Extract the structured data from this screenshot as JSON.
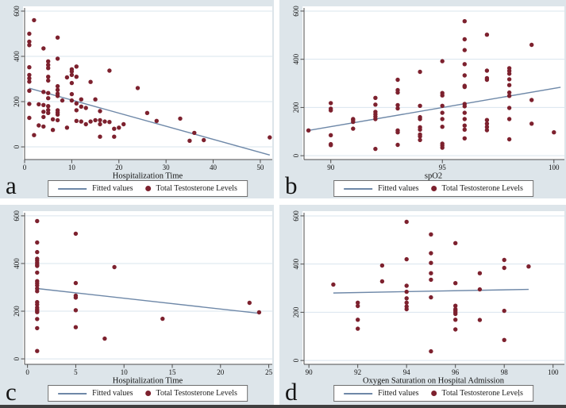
{
  "figure": {
    "colors": {
      "panel_background": "#dde5ea",
      "plot_background": "#ffffff",
      "gridline": "#d9e4ee",
      "axis": "#4d4d4d",
      "text": "#111111",
      "fit_line": "#6e88a8",
      "dot": "#7d212e",
      "legend_border": "#6e6e6e",
      "bottom_bar": "#3f3f3f"
    },
    "legend": {
      "fitted": "Fitted values",
      "scatter": "Total Testosterone Levels"
    },
    "stray_mark": "’"
  },
  "chart_data": [
    {
      "panel_letter": "a",
      "type": "scatter",
      "title": "",
      "xlabel": "Hospitalization Time",
      "ylabel": "",
      "xticks": [
        0,
        10,
        20,
        30,
        40,
        50
      ],
      "yticks": [
        0,
        200,
        400,
        600
      ],
      "xlim": [
        0,
        52.2
      ],
      "ylim": [
        -56,
        614
      ],
      "grid": "horizontal",
      "legend_position": "bottom",
      "fit_line": {
        "x": [
          1,
          52
        ],
        "y": [
          259,
          -36
        ]
      },
      "series": [
        {
          "name": "Total Testosterone Levels",
          "points": [
            [
              1,
              500
            ],
            [
              1,
              465
            ],
            [
              1,
              450
            ],
            [
              1,
              352
            ],
            [
              1,
              318
            ],
            [
              1,
              303
            ],
            [
              1,
              288
            ],
            [
              1,
              248
            ],
            [
              1,
              190
            ],
            [
              1,
              128
            ],
            [
              2,
              560
            ],
            [
              2,
              52
            ],
            [
              3,
              188
            ],
            [
              3,
              95
            ],
            [
              4,
              435
            ],
            [
              4,
              243
            ],
            [
              4,
              185
            ],
            [
              4,
              155
            ],
            [
              4,
              132
            ],
            [
              4,
              90
            ],
            [
              5,
              378
            ],
            [
              5,
              362
            ],
            [
              5,
              348
            ],
            [
              5,
              310
            ],
            [
              5,
              293
            ],
            [
              5,
              238
            ],
            [
              5,
              215
            ],
            [
              5,
              180
            ],
            [
              5,
              163
            ],
            [
              5,
              150
            ],
            [
              6,
              122
            ],
            [
              6,
              75
            ],
            [
              7,
              483
            ],
            [
              7,
              390
            ],
            [
              7,
              268
            ],
            [
              7,
              252
            ],
            [
              7,
              235
            ],
            [
              7,
              225
            ],
            [
              7,
              162
            ],
            [
              7,
              152
            ],
            [
              7,
              143
            ],
            [
              7,
              118
            ],
            [
              8,
              205
            ],
            [
              9,
              307
            ],
            [
              9,
              85
            ],
            [
              10,
              343
            ],
            [
              10,
              333
            ],
            [
              10,
              318
            ],
            [
              10,
              282
            ],
            [
              10,
              233
            ],
            [
              10,
              205
            ],
            [
              11,
              355
            ],
            [
              11,
              310
            ],
            [
              11,
              192
            ],
            [
              11,
              162
            ],
            [
              11,
              115
            ],
            [
              12,
              210
            ],
            [
              12,
              178
            ],
            [
              12,
              112
            ],
            [
              13,
              172
            ],
            [
              13,
              100
            ],
            [
              14,
              287
            ],
            [
              14,
              112
            ],
            [
              15,
              210
            ],
            [
              15,
              118
            ],
            [
              16,
              158
            ],
            [
              16,
              118
            ],
            [
              16,
              100
            ],
            [
              16,
              45
            ],
            [
              17,
              112
            ],
            [
              18,
              337
            ],
            [
              18,
              110
            ],
            [
              19,
              80
            ],
            [
              19,
              45
            ],
            [
              20,
              85
            ],
            [
              21,
              100
            ],
            [
              24,
              260
            ],
            [
              26,
              150
            ],
            [
              28,
              115
            ],
            [
              33,
              125
            ],
            [
              35,
              27
            ],
            [
              36,
              62
            ],
            [
              38,
              30
            ],
            [
              52,
              42
            ]
          ]
        }
      ]
    },
    {
      "panel_letter": "b",
      "type": "scatter",
      "title": "",
      "xlabel": "spO2",
      "ylabel": "",
      "xticks": [
        90,
        95,
        100
      ],
      "yticks": [
        0,
        200,
        400,
        600
      ],
      "xlim": [
        88.8,
        100.4
      ],
      "ylim": [
        -16,
        613
      ],
      "grid": "horizontal",
      "legend_position": "bottom",
      "fit_line": {
        "x": [
          88.9,
          100.3
        ],
        "y": [
          103,
          284
        ]
      },
      "series": [
        {
          "name": "Total Testosterone Levels",
          "points": [
            [
              89,
              105
            ],
            [
              90,
              218
            ],
            [
              90,
              195
            ],
            [
              90,
              188
            ],
            [
              90,
              85
            ],
            [
              90,
              48
            ],
            [
              90,
              44
            ],
            [
              91,
              152
            ],
            [
              91,
              148
            ],
            [
              91,
              140
            ],
            [
              91,
              112
            ],
            [
              92,
              240
            ],
            [
              92,
              212
            ],
            [
              92,
              182
            ],
            [
              92,
              172
            ],
            [
              92,
              162
            ],
            [
              92,
              152
            ],
            [
              92,
              28
            ],
            [
              93,
              315
            ],
            [
              93,
              272
            ],
            [
              93,
              262
            ],
            [
              93,
              210
            ],
            [
              93,
              196
            ],
            [
              93,
              105
            ],
            [
              93,
              97
            ],
            [
              93,
              45
            ],
            [
              94,
              348
            ],
            [
              94,
              207
            ],
            [
              94,
              160
            ],
            [
              94,
              152
            ],
            [
              94,
              118
            ],
            [
              94,
              108
            ],
            [
              94,
              88
            ],
            [
              94,
              80
            ],
            [
              94,
              65
            ],
            [
              95,
              392
            ],
            [
              95,
              260
            ],
            [
              95,
              250
            ],
            [
              95,
              207
            ],
            [
              95,
              178
            ],
            [
              95,
              152
            ],
            [
              95,
              120
            ],
            [
              95,
              50
            ],
            [
              95,
              42
            ],
            [
              95,
              33
            ],
            [
              96,
              558
            ],
            [
              96,
              483
            ],
            [
              96,
              438
            ],
            [
              96,
              380
            ],
            [
              96,
              333
            ],
            [
              96,
              290
            ],
            [
              96,
              285
            ],
            [
              96,
              215
            ],
            [
              96,
              205
            ],
            [
              96,
              178
            ],
            [
              96,
              152
            ],
            [
              96,
              125
            ],
            [
              96,
              108
            ],
            [
              96,
              72
            ],
            [
              97,
              502
            ],
            [
              97,
              353
            ],
            [
              97,
              322
            ],
            [
              97,
              315
            ],
            [
              97,
              148
            ],
            [
              97,
              133
            ],
            [
              97,
              119
            ],
            [
              97,
              106
            ],
            [
              98,
              363
            ],
            [
              98,
              352
            ],
            [
              98,
              340
            ],
            [
              98,
              317
            ],
            [
              98,
              293
            ],
            [
              98,
              262
            ],
            [
              98,
              248
            ],
            [
              98,
              198
            ],
            [
              98,
              152
            ],
            [
              98,
              68
            ],
            [
              99,
              460
            ],
            [
              99,
              231
            ],
            [
              99,
              133
            ],
            [
              100,
              97
            ]
          ]
        }
      ]
    },
    {
      "panel_letter": "c",
      "type": "scatter",
      "title": "",
      "xlabel": "Hospitalization Time",
      "ylabel": "",
      "xticks": [
        0,
        5,
        10,
        15,
        20,
        25
      ],
      "yticks": [
        0,
        200,
        400,
        600
      ],
      "xlim": [
        -0.3,
        25.2
      ],
      "ylim": [
        -23,
        613
      ],
      "grid": "horizontal",
      "legend_position": "bottom",
      "fit_line": {
        "x": [
          1,
          24
        ],
        "y": [
          295,
          191
        ]
      },
      "series": [
        {
          "name": "Total Testosterone Levels",
          "points": [
            [
              1,
              578
            ],
            [
              1,
              488
            ],
            [
              1,
              448
            ],
            [
              1,
              420
            ],
            [
              1,
              412
            ],
            [
              1,
              403
            ],
            [
              1,
              395
            ],
            [
              1,
              390
            ],
            [
              1,
              362
            ],
            [
              1,
              326
            ],
            [
              1,
              317
            ],
            [
              1,
              308
            ],
            [
              1,
              295
            ],
            [
              1,
              284
            ],
            [
              1,
              238
            ],
            [
              1,
              228
            ],
            [
              1,
              215
            ],
            [
              1,
              207
            ],
            [
              1,
              202
            ],
            [
              1,
              196
            ],
            [
              1,
              167
            ],
            [
              1,
              129
            ],
            [
              1,
              33
            ],
            [
              5,
              525
            ],
            [
              5,
              318
            ],
            [
              5,
              265
            ],
            [
              5,
              257
            ],
            [
              5,
              204
            ],
            [
              5,
              133
            ],
            [
              8,
              85
            ],
            [
              9,
              385
            ],
            [
              14,
              168
            ],
            [
              23,
              235
            ],
            [
              24,
              195
            ]
          ]
        }
      ]
    },
    {
      "panel_letter": "d",
      "type": "scatter",
      "title": "",
      "xlabel": "Oxygen Saturation on Hospital Admission",
      "ylabel": "",
      "xticks": [
        90,
        92,
        94,
        96,
        98,
        100
      ],
      "yticks": [
        0,
        200,
        400,
        600
      ],
      "xlim": [
        89.8,
        100.4
      ],
      "ylim": [
        -16,
        613
      ],
      "grid": "horizontal",
      "legend_position": "bottom",
      "fit_line": {
        "x": [
          91,
          99
        ],
        "y": [
          280,
          295
        ]
      },
      "series": [
        {
          "name": "Total Testosterone Levels",
          "points": [
            [
              91,
              315
            ],
            [
              92,
              240
            ],
            [
              92,
              226
            ],
            [
              92,
              169
            ],
            [
              92,
              132
            ],
            [
              93,
              394
            ],
            [
              93,
              328
            ],
            [
              94,
              575
            ],
            [
              94,
              420
            ],
            [
              94,
              310
            ],
            [
              94,
              285
            ],
            [
              94,
              258
            ],
            [
              94,
              240
            ],
            [
              94,
              224
            ],
            [
              94,
              213
            ],
            [
              95,
              523
            ],
            [
              95,
              445
            ],
            [
              95,
              405
            ],
            [
              95,
              362
            ],
            [
              95,
              335
            ],
            [
              95,
              262
            ],
            [
              95,
              38
            ],
            [
              96,
              487
            ],
            [
              96,
              321
            ],
            [
              96,
              227
            ],
            [
              96,
              213
            ],
            [
              96,
              207
            ],
            [
              96,
              200
            ],
            [
              96,
              193
            ],
            [
              96,
              169
            ],
            [
              96,
              129
            ],
            [
              97,
              362
            ],
            [
              97,
              295
            ],
            [
              97,
              168
            ],
            [
              98,
              417
            ],
            [
              98,
              384
            ],
            [
              98,
              206
            ],
            [
              98,
              85
            ],
            [
              99,
              390
            ]
          ]
        }
      ]
    }
  ]
}
